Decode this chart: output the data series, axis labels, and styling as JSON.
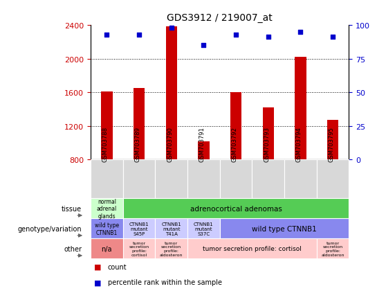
{
  "title": "GDS3912 / 219007_at",
  "samples": [
    "GSM703788",
    "GSM703789",
    "GSM703790",
    "GSM703791",
    "GSM703792",
    "GSM703793",
    "GSM703794",
    "GSM703795"
  ],
  "counts": [
    1610,
    1650,
    2380,
    1020,
    1600,
    1420,
    2020,
    1270
  ],
  "percentile_ranks": [
    93,
    93,
    98,
    85,
    93,
    91,
    95,
    91
  ],
  "ylim_left": [
    800,
    2400
  ],
  "ylim_right": [
    0,
    100
  ],
  "yticks_left": [
    800,
    1200,
    1600,
    2000,
    2400
  ],
  "yticks_right": [
    0,
    25,
    50,
    75,
    100
  ],
  "bar_color": "#cc0000",
  "dot_color": "#0000cc",
  "bar_width": 0.35,
  "left_axis_color": "#cc0000",
  "right_axis_color": "#0000cc",
  "background_color": "#ffffff",
  "row_labels": [
    "tissue",
    "genotype/variation",
    "other"
  ],
  "table_rows": [
    [
      {
        "span": 1,
        "color": "#ccffcc",
        "text": "normal\nadrenal\nglands",
        "fontsize": 5.5
      },
      {
        "span": 7,
        "color": "#55cc55",
        "text": "adrenocortical adenomas",
        "fontsize": 7.5
      }
    ],
    [
      {
        "span": 1,
        "color": "#8888ee",
        "text": "wild type\nCTNNB1",
        "fontsize": 5.5
      },
      {
        "span": 1,
        "color": "#ccccff",
        "text": "CTNNB1\nmutant\nS45P",
        "fontsize": 5.0
      },
      {
        "span": 1,
        "color": "#ccccff",
        "text": "CTNNB1\nmutant\nT41A",
        "fontsize": 5.0
      },
      {
        "span": 1,
        "color": "#ccccff",
        "text": "CTNNB1\nmutant\nS37C",
        "fontsize": 5.0
      },
      {
        "span": 4,
        "color": "#8888ee",
        "text": "wild type CTNNB1",
        "fontsize": 7.5
      }
    ],
    [
      {
        "span": 1,
        "color": "#ee8888",
        "text": "n/a",
        "fontsize": 7
      },
      {
        "span": 1,
        "color": "#ffcccc",
        "text": "tumor\nsecretion\nprofile:\ncortisol",
        "fontsize": 4.5
      },
      {
        "span": 1,
        "color": "#ffcccc",
        "text": "tumor\nsecretion\nprofile:\naldosteron",
        "fontsize": 4.5
      },
      {
        "span": 4,
        "color": "#ffcccc",
        "text": "tumor secretion profile: cortisol",
        "fontsize": 6.5
      },
      {
        "span": 1,
        "color": "#ffcccc",
        "text": "tumor\nsecretion\nprofile:\naldosteron",
        "fontsize": 4.5
      }
    ]
  ],
  "legend_items": [
    {
      "color": "#cc0000",
      "marker": "s",
      "label": "count"
    },
    {
      "color": "#0000cc",
      "marker": "s",
      "label": "percentile rank within the sample"
    }
  ]
}
